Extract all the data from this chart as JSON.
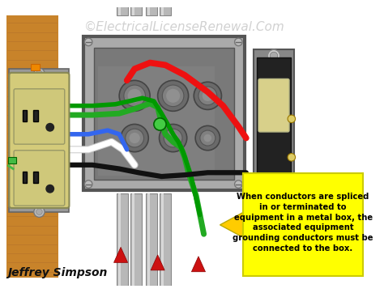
{
  "watermark": "©ElectricalLicenseRenewal.Com",
  "watermark_color": "#cccccc",
  "watermark_fontsize": 11,
  "author": "Jeffrey Simpson",
  "author_fontsize": 10,
  "bg_color": "#ffffff",
  "callout_text": "When conductors are spliced\nin or terminated to\nequipment in a metal box, the\nassociated equipment\ngrounding conductors must be\nconnected to the box.",
  "callout_bg": "#ffff00",
  "callout_text_color": "#000000",
  "callout_fontsize": 7.2,
  "arrow_color": "#ffcc00",
  "wood_color": "#c8832a",
  "wood_dark": "#a0612a",
  "conduit_color": "#b8b8b8",
  "conduit_dark": "#888888",
  "box_outer": "#aaaaaa",
  "box_inner": "#888888",
  "box_edge": "#666666",
  "outlet_color": "#d4cb7a",
  "outlet_dark": "#b8ac5a",
  "switch_plate": "#888888",
  "switch_body": "#333333",
  "switch_toggle": "#d8d08a",
  "red_tip": "#cc1111"
}
